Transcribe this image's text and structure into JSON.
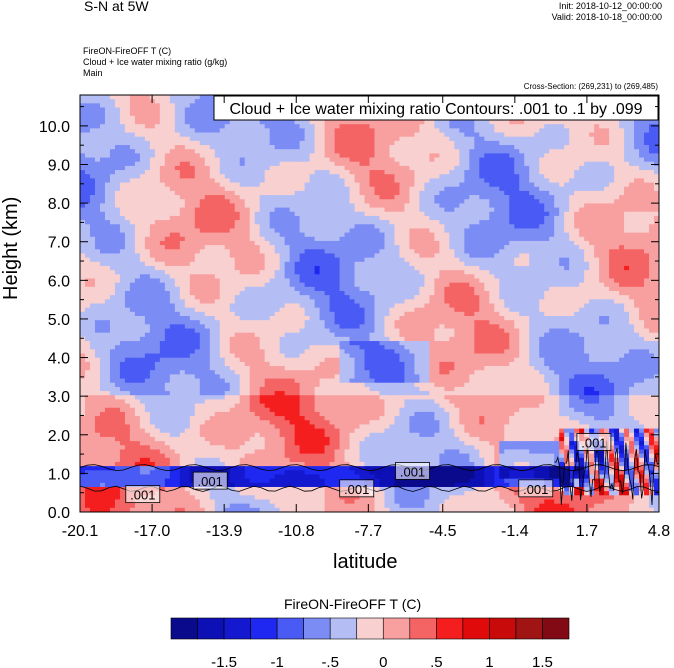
{
  "header": {
    "title": "S-N at 5W",
    "init": "Init: 2018-10-12_00:00:00",
    "valid": "Valid: 2018-10-18_00:00:00",
    "field1": "FireON-FireOFF T   (C)",
    "field2": "Cloud + Ice water mixing ratio   (g/kg)",
    "field3": "Main",
    "cross_section": "Cross-Section: (269,231) to (269,485)"
  },
  "chart_data": {
    "type": "heatmap",
    "title": "S-N at 5W",
    "annotation": "Cloud + Ice water mixing ratio Contours: .001 to .1 by .099",
    "xlabel": "latitude",
    "ylabel": "Height (km)",
    "x_ticks": [
      "-20.1",
      "-17.0",
      "-13.9",
      "-10.8",
      "-7.7",
      "-4.5",
      "-1.4",
      "1.7",
      "4.8"
    ],
    "y_ticks": [
      "0.0",
      "1.0",
      "2.0",
      "3.0",
      "4.0",
      "5.0",
      "6.0",
      "7.0",
      "8.0",
      "9.0",
      "10.0"
    ],
    "xlim": [
      -20.1,
      4.8
    ],
    "ylim": [
      0,
      10.8
    ],
    "contour_labels": [
      {
        "x": -17.4,
        "y": 0.45,
        "text": ".001"
      },
      {
        "x": -14.5,
        "y": 0.8,
        "text": ".001"
      },
      {
        "x": -8.2,
        "y": 0.6,
        "text": ".001"
      },
      {
        "x": -5.8,
        "y": 1.05,
        "text": ".001"
      },
      {
        "x": -0.5,
        "y": 0.6,
        "text": ".001"
      },
      {
        "x": 2.0,
        "y": 1.8,
        "text": ".001"
      }
    ],
    "colorbar": {
      "title": "FireON-FireOFF T  (C)",
      "tick_labels": [
        "-1.5",
        "-1",
        "-.5",
        "0",
        ".5",
        "1",
        "1.5"
      ],
      "colors": [
        "#0a0a8c",
        "#0d10b4",
        "#1418cf",
        "#1e28f0",
        "#4a5af5",
        "#7c8cf5",
        "#b4bef5",
        "#f8d0d0",
        "#f8a0a0",
        "#f56464",
        "#f51e1e",
        "#e10a0a",
        "#c80a0a",
        "#a01414",
        "#820a14"
      ]
    }
  }
}
